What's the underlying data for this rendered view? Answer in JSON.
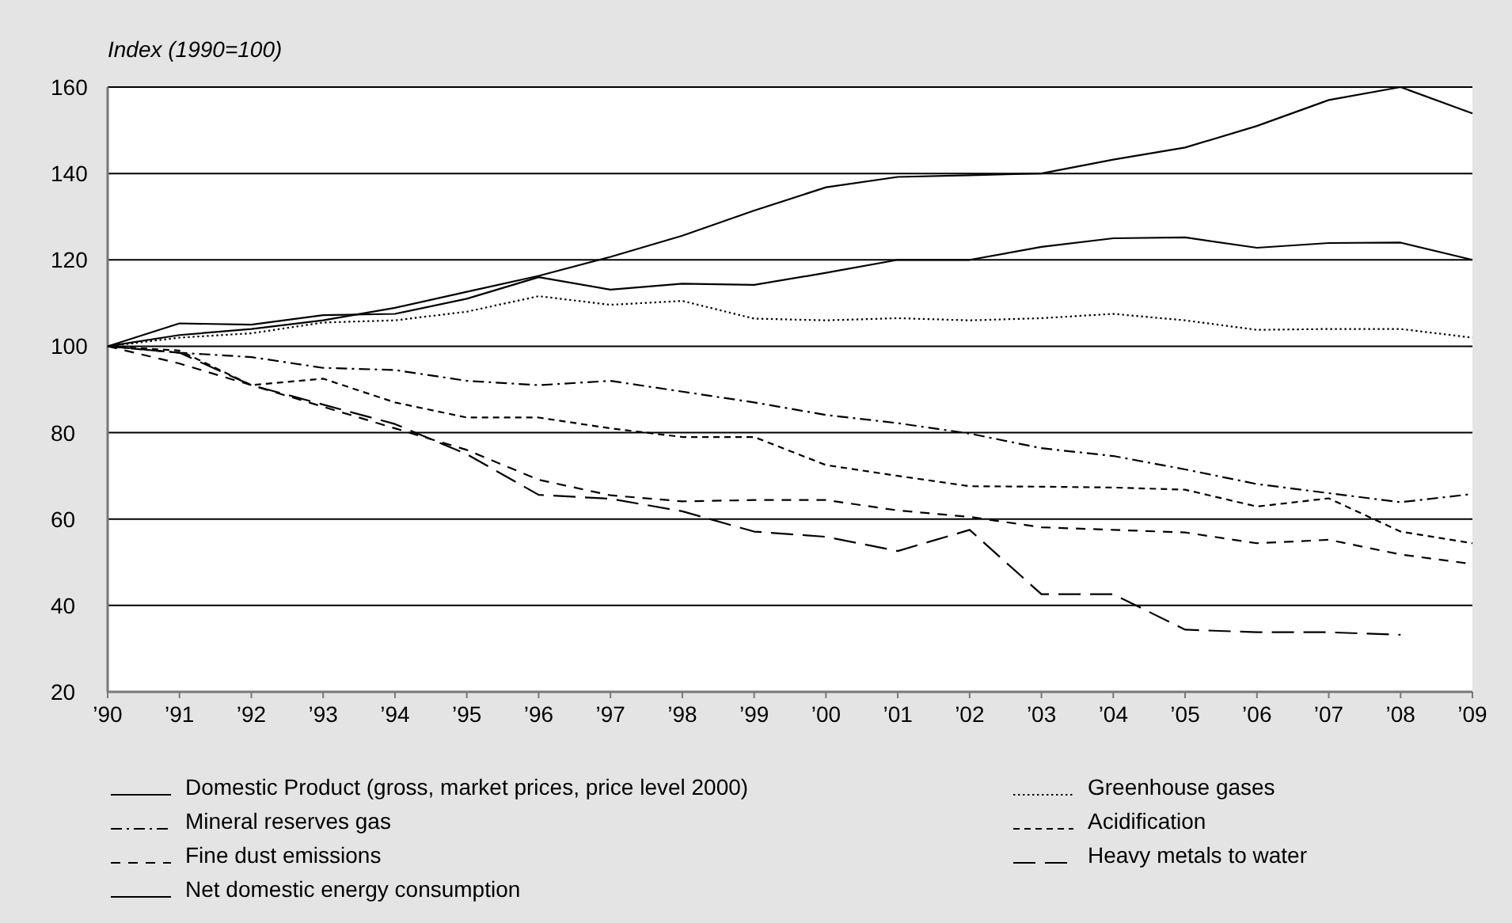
{
  "chart_data": {
    "type": "line",
    "ylabel": "Index (1990=100)",
    "x": [
      1990,
      1991,
      1992,
      1993,
      1994,
      1995,
      1996,
      1997,
      1998,
      1999,
      2000,
      2001,
      2002,
      2003,
      2004,
      2005,
      2006,
      2007,
      2008,
      2009
    ],
    "xlim": [
      1990,
      2009
    ],
    "xticks": [
      {
        "value": 1990,
        "label": "’90"
      },
      {
        "value": 1991,
        "label": "’91"
      },
      {
        "value": 1992,
        "label": "’92"
      },
      {
        "value": 1993,
        "label": "’93"
      },
      {
        "value": 1994,
        "label": "’94"
      },
      {
        "value": 1995,
        "label": "’95"
      },
      {
        "value": 1996,
        "label": "’96"
      },
      {
        "value": 1997,
        "label": "’97"
      },
      {
        "value": 1998,
        "label": "’98"
      },
      {
        "value": 1999,
        "label": "’99"
      },
      {
        "value": 2000,
        "label": "’00"
      },
      {
        "value": 2001,
        "label": "’01"
      },
      {
        "value": 2002,
        "label": "’02"
      },
      {
        "value": 2003,
        "label": "’03"
      },
      {
        "value": 2004,
        "label": "’04"
      },
      {
        "value": 2005,
        "label": "’05"
      },
      {
        "value": 2006,
        "label": "’06"
      },
      {
        "value": 2007,
        "label": "’07"
      },
      {
        "value": 2008,
        "label": "’08"
      },
      {
        "value": 2009,
        "label": "’09"
      }
    ],
    "ylim": [
      20,
      160
    ],
    "yticks": [
      20,
      40,
      60,
      80,
      100,
      120,
      140,
      160
    ],
    "grid": "y",
    "legend": "bottom",
    "series": [
      {
        "name": "Domestic Product (gross, market prices, price level 2000)",
        "color": "#000000",
        "line_style": "solid",
        "values": [
          100,
          102.6,
          104,
          106,
          108.9,
          112.6,
          116.3,
          120.7,
          125.6,
          131.4,
          136.8,
          139.2,
          139.6,
          140,
          143.2,
          146,
          151,
          157,
          160,
          153.9
        ]
      },
      {
        "name": "Greenhouse gases",
        "color": "#000000",
        "line_style": "dotted",
        "values": [
          100,
          102,
          103,
          105.5,
          106,
          108,
          111.6,
          109.6,
          110.5,
          106.4,
          106,
          106.5,
          106,
          106.5,
          107.5,
          106,
          103.8,
          104,
          104,
          102
        ]
      },
      {
        "name": "Mineral reserves gas",
        "color": "#000000",
        "line_style": "dashdot",
        "values": [
          100,
          98.5,
          97.5,
          95,
          94.5,
          92,
          91,
          92,
          89.5,
          87,
          84.1,
          82.2,
          79.8,
          76.4,
          74.6,
          71.5,
          68.1,
          66,
          63.9,
          65.8
        ]
      },
      {
        "name": "Acidification",
        "color": "#000000",
        "line_style": "dashed",
        "values": [
          100,
          99,
          91,
          92.5,
          87,
          83.5,
          83.5,
          81,
          79,
          79,
          72.5,
          70,
          67.6,
          67.5,
          67.3,
          66.8,
          62.9,
          64.8,
          57.1,
          54.4
        ]
      },
      {
        "name": "Fine dust emissions",
        "color": "#000000",
        "line_style": "mediumdash",
        "values": [
          100,
          96,
          91,
          86,
          81,
          76,
          69.1,
          65.5,
          64.1,
          64.4,
          64.4,
          62,
          60.5,
          58.1,
          57.5,
          56.9,
          54.4,
          55.2,
          51.8,
          49.6
        ]
      },
      {
        "name": "Heavy metals to water",
        "color": "#000000",
        "line_style": "longdash",
        "values": [
          100,
          98.5,
          91,
          86.5,
          82,
          75,
          65.6,
          64.7,
          61.8,
          57.1,
          55.9,
          52.6,
          57.5,
          42.6,
          42.6,
          34.4,
          33.8,
          33.8,
          33.2,
          null
        ]
      },
      {
        "name": "Net domestic energy consumption",
        "color": "#000000",
        "line_style": "solid",
        "values": [
          100,
          105.3,
          105,
          107.2,
          107.5,
          111,
          116,
          113.1,
          114.5,
          114.2,
          117,
          120,
          120,
          123,
          125,
          125.2,
          122.8,
          123.9,
          124,
          120
        ]
      }
    ]
  }
}
